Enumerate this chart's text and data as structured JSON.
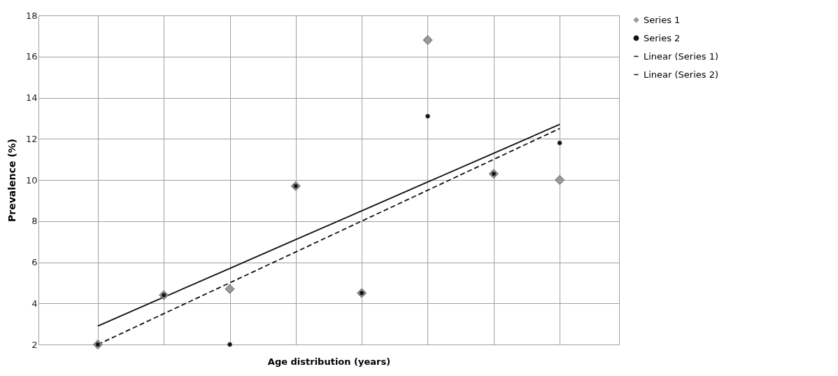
{
  "chart_data": {
    "type": "scatter",
    "xlabel": "Age distribution (years)",
    "ylabel": "Prevalence (%)",
    "categories": [
      null,
      null,
      null,
      null,
      null,
      null,
      null,
      null
    ],
    "series": [
      {
        "name": "Series 1",
        "marker": "diamond",
        "color": "#999999",
        "values": [
          2.0,
          4.4,
          4.7,
          9.7,
          4.5,
          16.8,
          10.3,
          10.0
        ]
      },
      {
        "name": "Series 2",
        "marker": "circle",
        "color": "#111111",
        "values": [
          2.0,
          4.4,
          2.0,
          9.7,
          4.5,
          13.1,
          10.3,
          11.8
        ]
      },
      {
        "name": "Linear (Series 1)",
        "type": "line",
        "line_style": "solid",
        "color": "#111111",
        "values": [
          2.9,
          4.3,
          5.7,
          7.1,
          8.5,
          9.9,
          11.3,
          12.7
        ]
      },
      {
        "name": "Linear (Series 2)",
        "type": "line",
        "line_style": "dashed",
        "color": "#111111",
        "values": [
          2.0,
          3.5,
          5.0,
          6.5,
          8.0,
          9.5,
          11.0,
          12.5
        ]
      }
    ],
    "ylim": [
      2,
      18
    ],
    "yticks": [
      2,
      4,
      6,
      8,
      10,
      12,
      14,
      16,
      18
    ],
    "grid": true,
    "legend": "right"
  }
}
